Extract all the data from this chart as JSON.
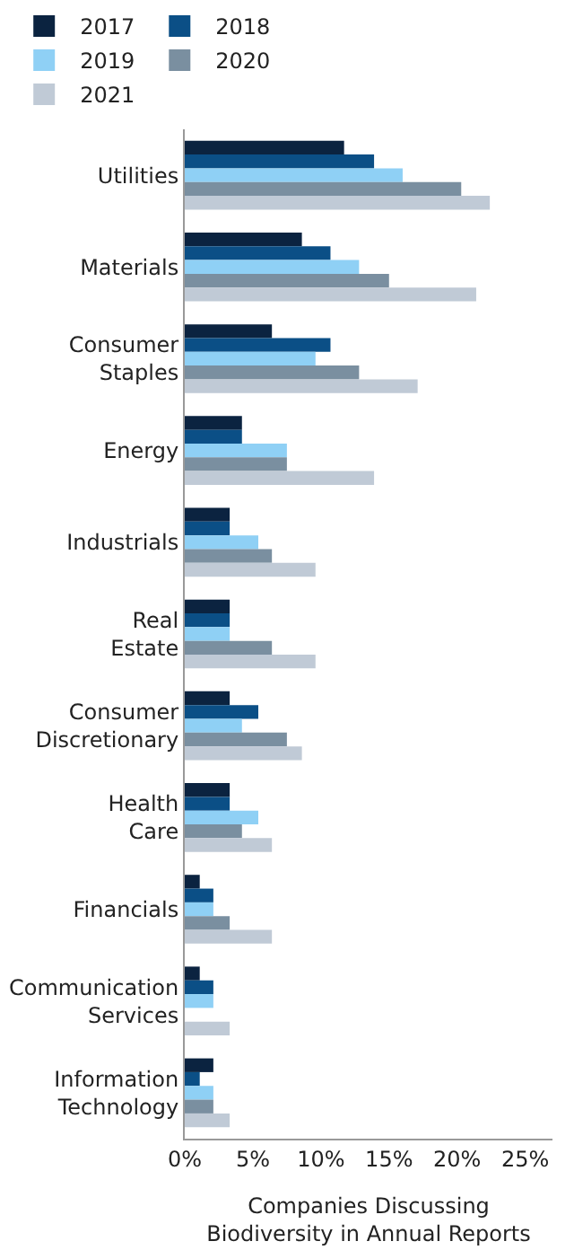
{
  "chart_data": {
    "type": "bar",
    "orientation": "horizontal",
    "xlabel": "Companies Discussing\nBiodiversity in Annual Reports",
    "categories": [
      "Utilities",
      "Materials",
      "Consumer\nStaples",
      "Energy",
      "Industrials",
      "Real\nEstate",
      "Consumer\nDiscretionary",
      "Health\nCare",
      "Financials",
      "Communication\nServices",
      "Information\nTechnology"
    ],
    "series": [
      {
        "name": "2017",
        "color": "#0b2340",
        "values": [
          11.7,
          8.6,
          6.4,
          4.2,
          3.3,
          3.3,
          3.3,
          3.3,
          1.1,
          1.1,
          2.1
        ]
      },
      {
        "name": "2018",
        "color": "#0b4f86",
        "values": [
          13.9,
          10.7,
          10.7,
          4.2,
          3.3,
          3.3,
          5.4,
          3.3,
          2.1,
          2.1,
          1.1
        ]
      },
      {
        "name": "2019",
        "color": "#8fd0f5",
        "values": [
          16.0,
          12.8,
          9.6,
          7.5,
          5.4,
          3.3,
          4.2,
          5.4,
          2.1,
          2.1,
          2.1
        ]
      },
      {
        "name": "2020",
        "color": "#7a8fa0",
        "values": [
          20.3,
          15.0,
          12.8,
          7.5,
          6.4,
          6.4,
          7.5,
          4.2,
          3.3,
          0,
          2.1
        ]
      },
      {
        "name": "2021",
        "color": "#c0cad6",
        "values": [
          22.4,
          21.4,
          17.1,
          13.9,
          9.6,
          9.6,
          8.6,
          6.4,
          6.4,
          3.3,
          3.3
        ]
      }
    ],
    "xlim": [
      0,
      27
    ],
    "xticks": [
      {
        "value": 0,
        "label": "0%"
      },
      {
        "value": 5,
        "label": "5%"
      },
      {
        "value": 10,
        "label": "10%"
      },
      {
        "value": 15,
        "label": "15%"
      },
      {
        "value": 20,
        "label": "20%"
      },
      {
        "value": 25,
        "label": "25%"
      }
    ],
    "legend": "top left"
  }
}
